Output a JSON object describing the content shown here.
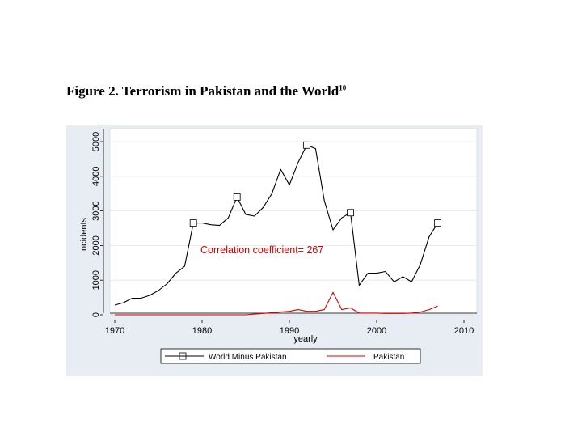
{
  "figure": {
    "title": "Figure 2. Terrorism in Pakistan and the World",
    "footnote": "10"
  },
  "chart_data": {
    "type": "line",
    "xlabel": "yearly",
    "ylabel": "Incidents",
    "xlim": [
      1970,
      2010
    ],
    "ylim": [
      0,
      5000
    ],
    "x_ticks": [
      "1970",
      "1980",
      "1990",
      "2000",
      "2010"
    ],
    "y_ticks": [
      "0",
      "1000",
      "2000",
      "3000",
      "4000",
      "5000"
    ],
    "grid": true,
    "legend_position": "bottom",
    "annotation": "Correlation coefficient= 267",
    "colors": {
      "world": "#000000",
      "pakistan": "#d40000",
      "panel": "#e7edf2"
    },
    "series": [
      {
        "name": "World Minus Pakistan",
        "x": [
          1970,
          1971,
          1972,
          1973,
          1974,
          1975,
          1976,
          1977,
          1978,
          1979,
          1980,
          1981,
          1982,
          1983,
          1984,
          1985,
          1986,
          1987,
          1988,
          1989,
          1990,
          1991,
          1992,
          1993,
          1994,
          1995,
          1996,
          1997,
          1998,
          1999,
          2000,
          2001,
          2002,
          2003,
          2004,
          2005,
          2006,
          2007
        ],
        "y": [
          280,
          350,
          480,
          480,
          560,
          700,
          900,
          1200,
          1400,
          2650,
          2650,
          2600,
          2580,
          2800,
          3400,
          2900,
          2850,
          3100,
          3500,
          4200,
          3750,
          4400,
          4900,
          4800,
          3300,
          2450,
          2800,
          2950,
          850,
          1200,
          1200,
          1250,
          950,
          1100,
          950,
          1450,
          2250,
          2650
        ],
        "markers": [
          {
            "x": 1979,
            "y": 2650
          },
          {
            "x": 1984,
            "y": 3400
          },
          {
            "x": 1992,
            "y": 4900
          },
          {
            "x": 1997,
            "y": 2950
          },
          {
            "x": 2007,
            "y": 2650
          }
        ]
      },
      {
        "name": "Pakistan",
        "x": [
          1970,
          1972,
          1974,
          1976,
          1978,
          1980,
          1982,
          1984,
          1985,
          1986,
          1987,
          1988,
          1989,
          1990,
          1991,
          1992,
          1993,
          1994,
          1995,
          1996,
          1997,
          1998,
          1999,
          2000,
          2001,
          2002,
          2003,
          2004,
          2005,
          2006,
          2007
        ],
        "y": [
          0,
          0,
          0,
          0,
          0,
          0,
          0,
          0,
          0,
          20,
          40,
          60,
          80,
          100,
          150,
          100,
          100,
          150,
          650,
          150,
          200,
          50,
          50,
          50,
          40,
          40,
          40,
          50,
          80,
          150,
          250
        ]
      }
    ]
  }
}
